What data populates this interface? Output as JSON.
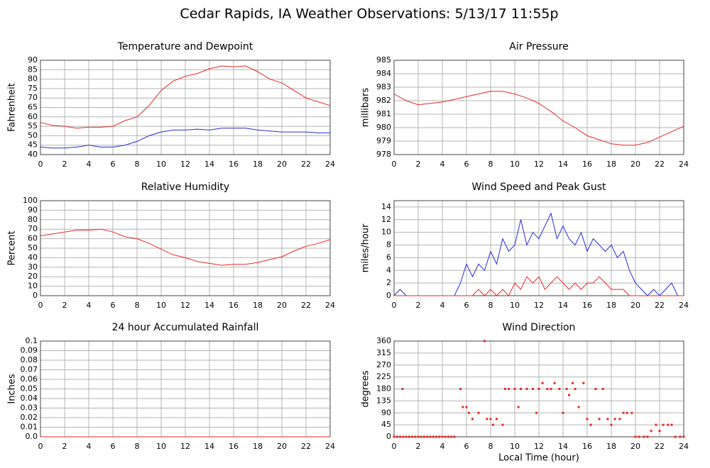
{
  "title": "Cedar Rapids, IA Weather Observations: 5/13/17 11:55p",
  "chart_data": [
    {
      "type": "line",
      "title": "Temperature and Dewpoint",
      "ylabel": "Fahrenheit",
      "x": [
        0,
        1,
        2,
        3,
        4,
        5,
        6,
        7,
        8,
        9,
        10,
        11,
        12,
        13,
        14,
        15,
        16,
        17,
        18,
        19,
        20,
        21,
        22,
        23,
        24
      ],
      "series": [
        {
          "color": "#e8292b",
          "values": [
            57,
            55.5,
            55,
            54,
            54.5,
            54.5,
            55,
            58,
            60,
            66,
            74,
            79,
            81.5,
            83,
            85.5,
            87,
            86.5,
            87,
            84,
            80,
            78,
            74,
            70,
            68,
            66
          ]
        },
        {
          "color": "#2a2ad6",
          "values": [
            44,
            43.5,
            43.5,
            44,
            45,
            44,
            44,
            45,
            47,
            50,
            52,
            53,
            53,
            53.5,
            53,
            54,
            54,
            54,
            53,
            52.5,
            52,
            52,
            52,
            51.5,
            51.5
          ]
        }
      ],
      "xlim": [
        0,
        24
      ],
      "xticks": [
        0,
        2,
        4,
        6,
        8,
        10,
        12,
        14,
        16,
        18,
        20,
        22,
        24
      ],
      "ylim": [
        40,
        90
      ],
      "yticks": [
        40,
        45,
        50,
        55,
        60,
        65,
        70,
        75,
        80,
        85,
        90
      ],
      "grid": true
    },
    {
      "type": "line",
      "title": "Air Pressure",
      "ylabel": "millibars",
      "x": [
        0,
        1,
        2,
        3,
        4,
        5,
        6,
        7,
        8,
        9,
        10,
        11,
        12,
        13,
        14,
        15,
        16,
        17,
        18,
        19,
        20,
        21,
        22,
        23,
        24
      ],
      "series": [
        {
          "color": "#e8292b",
          "values": [
            982.5,
            982.0,
            981.7,
            981.8,
            981.9,
            982.1,
            982.3,
            982.5,
            982.7,
            982.7,
            982.5,
            982.2,
            981.8,
            981.2,
            980.5,
            980.0,
            979.4,
            979.1,
            978.8,
            978.7,
            978.7,
            978.9,
            979.3,
            979.7,
            980.1
          ]
        }
      ],
      "xlim": [
        0,
        24
      ],
      "xticks": [
        0,
        2,
        4,
        6,
        8,
        10,
        12,
        14,
        16,
        18,
        20,
        22,
        24
      ],
      "ylim": [
        978,
        985
      ],
      "yticks": [
        978,
        979,
        980,
        981,
        982,
        983,
        984,
        985
      ],
      "grid": true
    },
    {
      "type": "line",
      "title": "Relative Humidity",
      "ylabel": "Percent",
      "x": [
        0,
        1,
        2,
        3,
        4,
        5,
        6,
        7,
        8,
        9,
        10,
        11,
        12,
        13,
        14,
        15,
        16,
        17,
        18,
        19,
        20,
        21,
        22,
        23,
        24
      ],
      "series": [
        {
          "color": "#e8292b",
          "values": [
            63,
            65,
            67,
            69,
            69,
            70,
            67,
            62,
            60,
            55,
            49,
            43,
            40,
            36,
            34,
            32,
            33,
            33,
            35,
            38,
            41,
            47,
            52,
            55,
            59
          ]
        }
      ],
      "xlim": [
        0,
        24
      ],
      "xticks": [
        0,
        2,
        4,
        6,
        8,
        10,
        12,
        14,
        16,
        18,
        20,
        22,
        24
      ],
      "ylim": [
        0,
        100
      ],
      "yticks": [
        0,
        10,
        20,
        30,
        40,
        50,
        60,
        70,
        80,
        90,
        100
      ],
      "grid": true
    },
    {
      "type": "line",
      "title": "Wind Speed and Peak Gust",
      "ylabel": "miles/hour",
      "x": [
        0,
        0.5,
        1,
        1.5,
        2,
        2.5,
        3,
        3.5,
        4,
        4.5,
        5,
        5.5,
        6,
        6.5,
        7,
        7.5,
        8,
        8.5,
        9,
        9.5,
        10,
        10.5,
        11,
        11.5,
        12,
        12.5,
        13,
        13.5,
        14,
        14.5,
        15,
        15.5,
        16,
        16.5,
        17,
        17.5,
        18,
        18.5,
        19,
        19.5,
        20,
        20.5,
        21,
        21.5,
        22,
        22.5,
        23,
        23.5,
        24
      ],
      "series": [
        {
          "color": "#2a2ad6",
          "values": [
            0,
            1,
            0,
            0,
            0,
            0,
            0,
            0,
            0,
            0,
            0,
            2,
            5,
            3,
            5,
            4,
            7,
            5,
            9,
            7,
            8,
            12,
            8,
            10,
            9,
            11,
            13,
            9,
            11,
            9,
            8,
            10,
            7,
            9,
            8,
            7,
            8,
            6,
            7,
            4,
            2,
            1,
            0,
            1,
            0,
            1,
            2,
            0,
            0
          ]
        },
        {
          "color": "#e8292b",
          "values": [
            0,
            0,
            0,
            0,
            0,
            0,
            0,
            0,
            0,
            0,
            0,
            0,
            0,
            0,
            1,
            0,
            1,
            0,
            1,
            0,
            2,
            1,
            3,
            2,
            3,
            1,
            2,
            3,
            2,
            1,
            2,
            1,
            2,
            2,
            3,
            2,
            1,
            1,
            1,
            0,
            0,
            0,
            0,
            0,
            0,
            0,
            0,
            0,
            0
          ]
        }
      ],
      "xlim": [
        0,
        24
      ],
      "xticks": [
        0,
        2,
        4,
        6,
        8,
        10,
        12,
        14,
        16,
        18,
        20,
        22,
        24
      ],
      "ylim": [
        0,
        15
      ],
      "yticks": [
        0,
        2,
        4,
        6,
        8,
        10,
        12,
        14
      ],
      "grid": true
    },
    {
      "type": "line",
      "title": "24 hour Accumulated Rainfall",
      "ylabel": "Inches",
      "x": [
        0,
        24
      ],
      "series": [
        {
          "color": "#e8292b",
          "values": [
            0,
            0
          ]
        }
      ],
      "xlim": [
        0,
        24
      ],
      "xticks": [
        0,
        2,
        4,
        6,
        8,
        10,
        12,
        14,
        16,
        18,
        20,
        22,
        24
      ],
      "ylim": [
        0,
        0.1
      ],
      "yticks": [
        {
          "value": 0,
          "label": "0.0"
        },
        0.01,
        0.02,
        0.03,
        0.04,
        0.05,
        0.06,
        0.07,
        0.08,
        0.09,
        0.1
      ],
      "grid": true
    },
    {
      "type": "scatter",
      "title": "Wind Direction",
      "ylabel": "degrees",
      "xlabel": "Local Time (hour)",
      "x": [
        0,
        0.25,
        0.5,
        0.7,
        0.75,
        1,
        1.25,
        1.5,
        1.75,
        2,
        2.25,
        2.5,
        2.75,
        3,
        3.25,
        3.5,
        3.75,
        4,
        4.25,
        4.5,
        4.75,
        5,
        5.5,
        5.7,
        6,
        6.2,
        6.5,
        7,
        7.5,
        7.7,
        8,
        8.2,
        8.5,
        9,
        9.2,
        9.5,
        10,
        10.3,
        10.5,
        11,
        11.5,
        11.8,
        12,
        12.3,
        12.7,
        13,
        13.3,
        13.7,
        14,
        14.3,
        14.5,
        14.8,
        15,
        15.3,
        15.7,
        16,
        16.3,
        16.7,
        17,
        17.3,
        17.7,
        18,
        18.3,
        18.7,
        19,
        19.3,
        19.7,
        20,
        20.3,
        20.7,
        21,
        21.3,
        21.7,
        22,
        22.3,
        22.7,
        23,
        23.3,
        23.7,
        24
      ],
      "series": [
        {
          "color": "#e8292b",
          "values": [
            0,
            0,
            0,
            180,
            0,
            0,
            0,
            0,
            0,
            0,
            0,
            0,
            0,
            0,
            0,
            0,
            0,
            0,
            0,
            0,
            0,
            0,
            180,
            112,
            112,
            90,
            67,
            90,
            360,
            67,
            67,
            45,
            67,
            45,
            180,
            180,
            180,
            112,
            180,
            180,
            180,
            90,
            180,
            202,
            180,
            180,
            202,
            180,
            90,
            180,
            157,
            202,
            180,
            112,
            202,
            67,
            45,
            180,
            67,
            180,
            67,
            45,
            67,
            67,
            90,
            90,
            90,
            0,
            0,
            0,
            0,
            22,
            45,
            22,
            45,
            45,
            45,
            0,
            0,
            0
          ]
        }
      ],
      "xlim": [
        0,
        24
      ],
      "xticks": [
        0,
        2,
        4,
        6,
        8,
        10,
        12,
        14,
        16,
        18,
        20,
        22,
        24
      ],
      "ylim": [
        0,
        360
      ],
      "yticks": [
        0,
        45,
        90,
        135,
        180,
        225,
        270,
        315,
        360
      ],
      "grid": true
    }
  ]
}
